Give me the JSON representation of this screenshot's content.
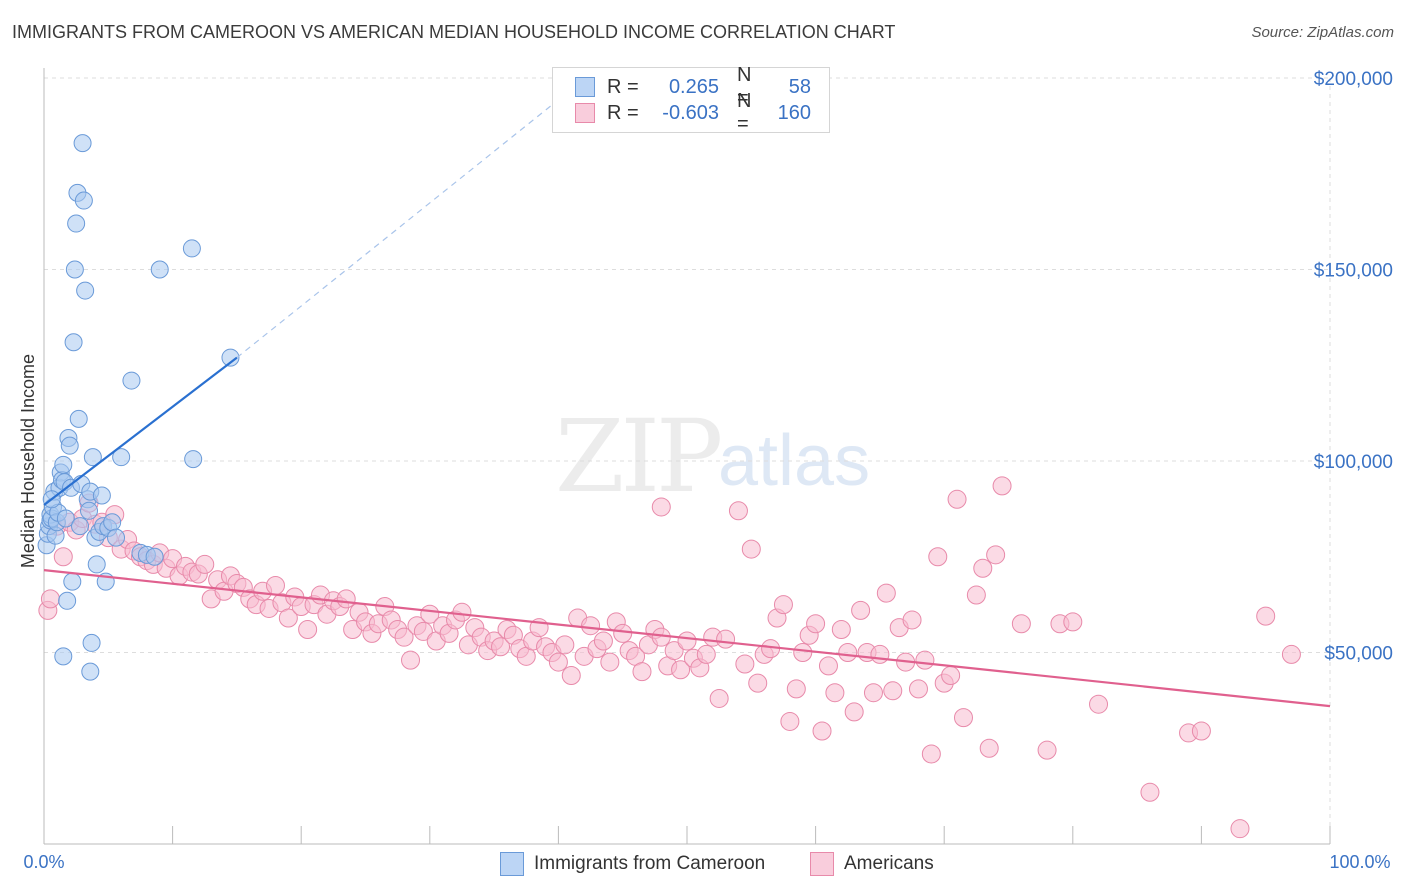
{
  "title": "IMMIGRANTS FROM CAMEROON VS AMERICAN MEDIAN HOUSEHOLD INCOME CORRELATION CHART",
  "source": "Source: ZipAtlas.com",
  "watermark": {
    "zip": "ZIP",
    "atlas": "atlas"
  },
  "legend": {
    "rows": [
      {
        "r_label": "R =",
        "r_value": "0.265",
        "n_label": "N =",
        "n_value": "58"
      },
      {
        "r_label": "R =",
        "r_value": "-0.603",
        "n_label": "N =",
        "n_value": "160"
      }
    ]
  },
  "bottom_legend": {
    "series1": "Immigrants from Cameroon",
    "series2": "Americans"
  },
  "colors": {
    "blue_fill": "#a8c8f0",
    "blue_stroke": "#6a9ad8",
    "blue_line": "#2a70d0",
    "pink_fill": "#f7bcd0",
    "pink_stroke": "#e88aaa",
    "pink_line": "#e0608e",
    "grid": "#dddddd",
    "axis_text": "#3a72c4"
  },
  "chart_data": {
    "type": "scatter",
    "title": "IMMIGRANTS FROM CAMEROON VS AMERICAN MEDIAN HOUSEHOLD INCOME CORRELATION CHART",
    "xlabel": "",
    "ylabel": "Median Household Income",
    "xlim": [
      0,
      100
    ],
    "ylim": [
      0,
      200000
    ],
    "x_tick_labels": [
      "0.0%",
      "100.0%"
    ],
    "y_ticks": [
      50000,
      100000,
      150000,
      200000
    ],
    "y_tick_labels": [
      "$50,000",
      "$100,000",
      "$150,000",
      "$200,000"
    ],
    "grid": "horizontal dashed",
    "legend_position": "top-center",
    "series": [
      {
        "name": "Immigrants from Cameroon",
        "r": 0.265,
        "n": 58,
        "trend": {
          "x": [
            0,
            15
          ],
          "y": [
            88500,
            127000
          ],
          "extended_to": [
            41,
            197000
          ]
        },
        "points": [
          [
            0.2,
            78000
          ],
          [
            0.3,
            81000
          ],
          [
            0.4,
            83000
          ],
          [
            0.5,
            84500
          ],
          [
            0.5,
            86000
          ],
          [
            0.6,
            85000
          ],
          [
            0.7,
            88000
          ],
          [
            0.8,
            92000
          ],
          [
            0.9,
            80500
          ],
          [
            1.0,
            84000
          ],
          [
            1.1,
            86500
          ],
          [
            1.2,
            93000
          ],
          [
            1.3,
            97000
          ],
          [
            1.4,
            95000
          ],
          [
            1.5,
            99000
          ],
          [
            1.6,
            94500
          ],
          [
            1.7,
            85000
          ],
          [
            1.8,
            63500
          ],
          [
            1.9,
            106000
          ],
          [
            2.0,
            104000
          ],
          [
            2.1,
            93000
          ],
          [
            2.2,
            68500
          ],
          [
            2.3,
            131000
          ],
          [
            2.4,
            150000
          ],
          [
            2.5,
            162000
          ],
          [
            2.6,
            170000
          ],
          [
            2.7,
            111000
          ],
          [
            2.8,
            83000
          ],
          [
            2.9,
            94000
          ],
          [
            3.0,
            183000
          ],
          [
            3.1,
            168000
          ],
          [
            3.2,
            144500
          ],
          [
            3.4,
            90000
          ],
          [
            3.5,
            87000
          ],
          [
            3.6,
            92000
          ],
          [
            3.7,
            52500
          ],
          [
            3.8,
            101000
          ],
          [
            4.0,
            80000
          ],
          [
            4.1,
            73000
          ],
          [
            4.3,
            81500
          ],
          [
            4.5,
            91000
          ],
          [
            4.6,
            83000
          ],
          [
            4.8,
            68500
          ],
          [
            5.0,
            82500
          ],
          [
            5.3,
            84000
          ],
          [
            5.6,
            80000
          ],
          [
            6.0,
            101000
          ],
          [
            6.8,
            121000
          ],
          [
            7.5,
            76000
          ],
          [
            8.0,
            75500
          ],
          [
            8.6,
            75000
          ],
          [
            9.0,
            150000
          ],
          [
            11.5,
            155500
          ],
          [
            11.6,
            100500
          ],
          [
            14.5,
            127000
          ],
          [
            1.5,
            49000
          ],
          [
            3.6,
            45000
          ],
          [
            0.6,
            90000
          ]
        ]
      },
      {
        "name": "Americans",
        "r": -0.603,
        "n": 160,
        "trend": {
          "x": [
            0,
            100
          ],
          "y": [
            71500,
            36000
          ]
        },
        "points": [
          [
            0.3,
            61000
          ],
          [
            0.5,
            64000
          ],
          [
            1.0,
            83000
          ],
          [
            1.5,
            75000
          ],
          [
            2.0,
            84000
          ],
          [
            2.5,
            82000
          ],
          [
            3.0,
            85000
          ],
          [
            3.5,
            89000
          ],
          [
            4.0,
            83500
          ],
          [
            4.5,
            84000
          ],
          [
            5.0,
            80000
          ],
          [
            5.5,
            86000
          ],
          [
            6.0,
            77000
          ],
          [
            6.5,
            79500
          ],
          [
            7.0,
            76500
          ],
          [
            7.5,
            75000
          ],
          [
            8.0,
            74000
          ],
          [
            8.5,
            73000
          ],
          [
            9.0,
            76000
          ],
          [
            9.5,
            72000
          ],
          [
            10.0,
            74500
          ],
          [
            10.5,
            70000
          ],
          [
            11.0,
            72500
          ],
          [
            11.5,
            71000
          ],
          [
            12.0,
            70500
          ],
          [
            12.5,
            73000
          ],
          [
            13.0,
            64000
          ],
          [
            13.5,
            69000
          ],
          [
            14.0,
            66000
          ],
          [
            14.5,
            70000
          ],
          [
            15.0,
            68000
          ],
          [
            15.5,
            67000
          ],
          [
            16.0,
            64000
          ],
          [
            16.5,
            62500
          ],
          [
            17.0,
            66000
          ],
          [
            17.5,
            61500
          ],
          [
            18.0,
            67500
          ],
          [
            18.5,
            63000
          ],
          [
            19.0,
            59000
          ],
          [
            19.5,
            64500
          ],
          [
            20.0,
            62000
          ],
          [
            20.5,
            56000
          ],
          [
            21.0,
            62500
          ],
          [
            21.5,
            65000
          ],
          [
            22.0,
            60000
          ],
          [
            22.5,
            63500
          ],
          [
            23.0,
            62000
          ],
          [
            23.5,
            64000
          ],
          [
            24.0,
            56000
          ],
          [
            24.5,
            60500
          ],
          [
            25.0,
            58000
          ],
          [
            25.5,
            55000
          ],
          [
            26.0,
            57500
          ],
          [
            26.5,
            62000
          ],
          [
            27.0,
            58500
          ],
          [
            27.5,
            56000
          ],
          [
            28.0,
            54000
          ],
          [
            28.5,
            48000
          ],
          [
            29.0,
            57000
          ],
          [
            29.5,
            55500
          ],
          [
            30.0,
            60000
          ],
          [
            30.5,
            53000
          ],
          [
            31.0,
            57000
          ],
          [
            31.5,
            55000
          ],
          [
            32.0,
            58500
          ],
          [
            32.5,
            60500
          ],
          [
            33.0,
            52000
          ],
          [
            33.5,
            56500
          ],
          [
            34.0,
            54000
          ],
          [
            34.5,
            50500
          ],
          [
            35.0,
            53000
          ],
          [
            35.5,
            51500
          ],
          [
            36.0,
            56000
          ],
          [
            36.5,
            54500
          ],
          [
            37.0,
            51000
          ],
          [
            37.5,
            49000
          ],
          [
            38.0,
            53000
          ],
          [
            38.5,
            56500
          ],
          [
            39.0,
            51500
          ],
          [
            39.5,
            50000
          ],
          [
            40.0,
            47500
          ],
          [
            40.5,
            52000
          ],
          [
            41.0,
            44000
          ],
          [
            41.5,
            59000
          ],
          [
            42.0,
            49000
          ],
          [
            42.5,
            57000
          ],
          [
            43.0,
            51000
          ],
          [
            43.5,
            53000
          ],
          [
            44.0,
            47500
          ],
          [
            44.5,
            58000
          ],
          [
            45.0,
            55000
          ],
          [
            45.5,
            50500
          ],
          [
            46.0,
            49000
          ],
          [
            46.5,
            45000
          ],
          [
            47.0,
            52000
          ],
          [
            47.5,
            56000
          ],
          [
            48.0,
            54000
          ],
          [
            48.5,
            46500
          ],
          [
            49.0,
            50500
          ],
          [
            49.5,
            45500
          ],
          [
            50.0,
            53000
          ],
          [
            50.5,
            48500
          ],
          [
            51.0,
            46000
          ],
          [
            51.5,
            49500
          ],
          [
            52.0,
            54000
          ],
          [
            52.5,
            38000
          ],
          [
            53.0,
            53500
          ],
          [
            54.0,
            87000
          ],
          [
            54.5,
            47000
          ],
          [
            55.0,
            77000
          ],
          [
            55.5,
            42000
          ],
          [
            56.0,
            49500
          ],
          [
            56.5,
            51000
          ],
          [
            57.0,
            59000
          ],
          [
            57.5,
            62500
          ],
          [
            58.0,
            32000
          ],
          [
            58.5,
            40500
          ],
          [
            59.0,
            50000
          ],
          [
            59.5,
            54500
          ],
          [
            60.0,
            57500
          ],
          [
            60.5,
            29500
          ],
          [
            61.0,
            46500
          ],
          [
            61.5,
            39500
          ],
          [
            62.0,
            56000
          ],
          [
            62.5,
            50000
          ],
          [
            63.0,
            34500
          ],
          [
            63.5,
            61000
          ],
          [
            64.0,
            50000
          ],
          [
            64.5,
            39500
          ],
          [
            65.0,
            49500
          ],
          [
            65.5,
            65500
          ],
          [
            66.0,
            40000
          ],
          [
            66.5,
            56500
          ],
          [
            67.0,
            47500
          ],
          [
            67.5,
            58500
          ],
          [
            68.0,
            40500
          ],
          [
            68.5,
            48000
          ],
          [
            69.0,
            23500
          ],
          [
            69.5,
            75000
          ],
          [
            70.0,
            42000
          ],
          [
            70.5,
            44000
          ],
          [
            71.0,
            90000
          ],
          [
            71.5,
            33000
          ],
          [
            72.5,
            65000
          ],
          [
            73.0,
            72000
          ],
          [
            73.5,
            25000
          ],
          [
            74.0,
            75500
          ],
          [
            74.5,
            93500
          ],
          [
            76.0,
            57500
          ],
          [
            78.0,
            24500
          ],
          [
            79.0,
            57500
          ],
          [
            80.0,
            58000
          ],
          [
            82.0,
            36500
          ],
          [
            86.0,
            13500
          ],
          [
            89.0,
            29000
          ],
          [
            90.0,
            29500
          ],
          [
            93.0,
            4000
          ],
          [
            95.0,
            59500
          ],
          [
            97.0,
            49500
          ],
          [
            48.0,
            88000
          ]
        ]
      }
    ]
  }
}
